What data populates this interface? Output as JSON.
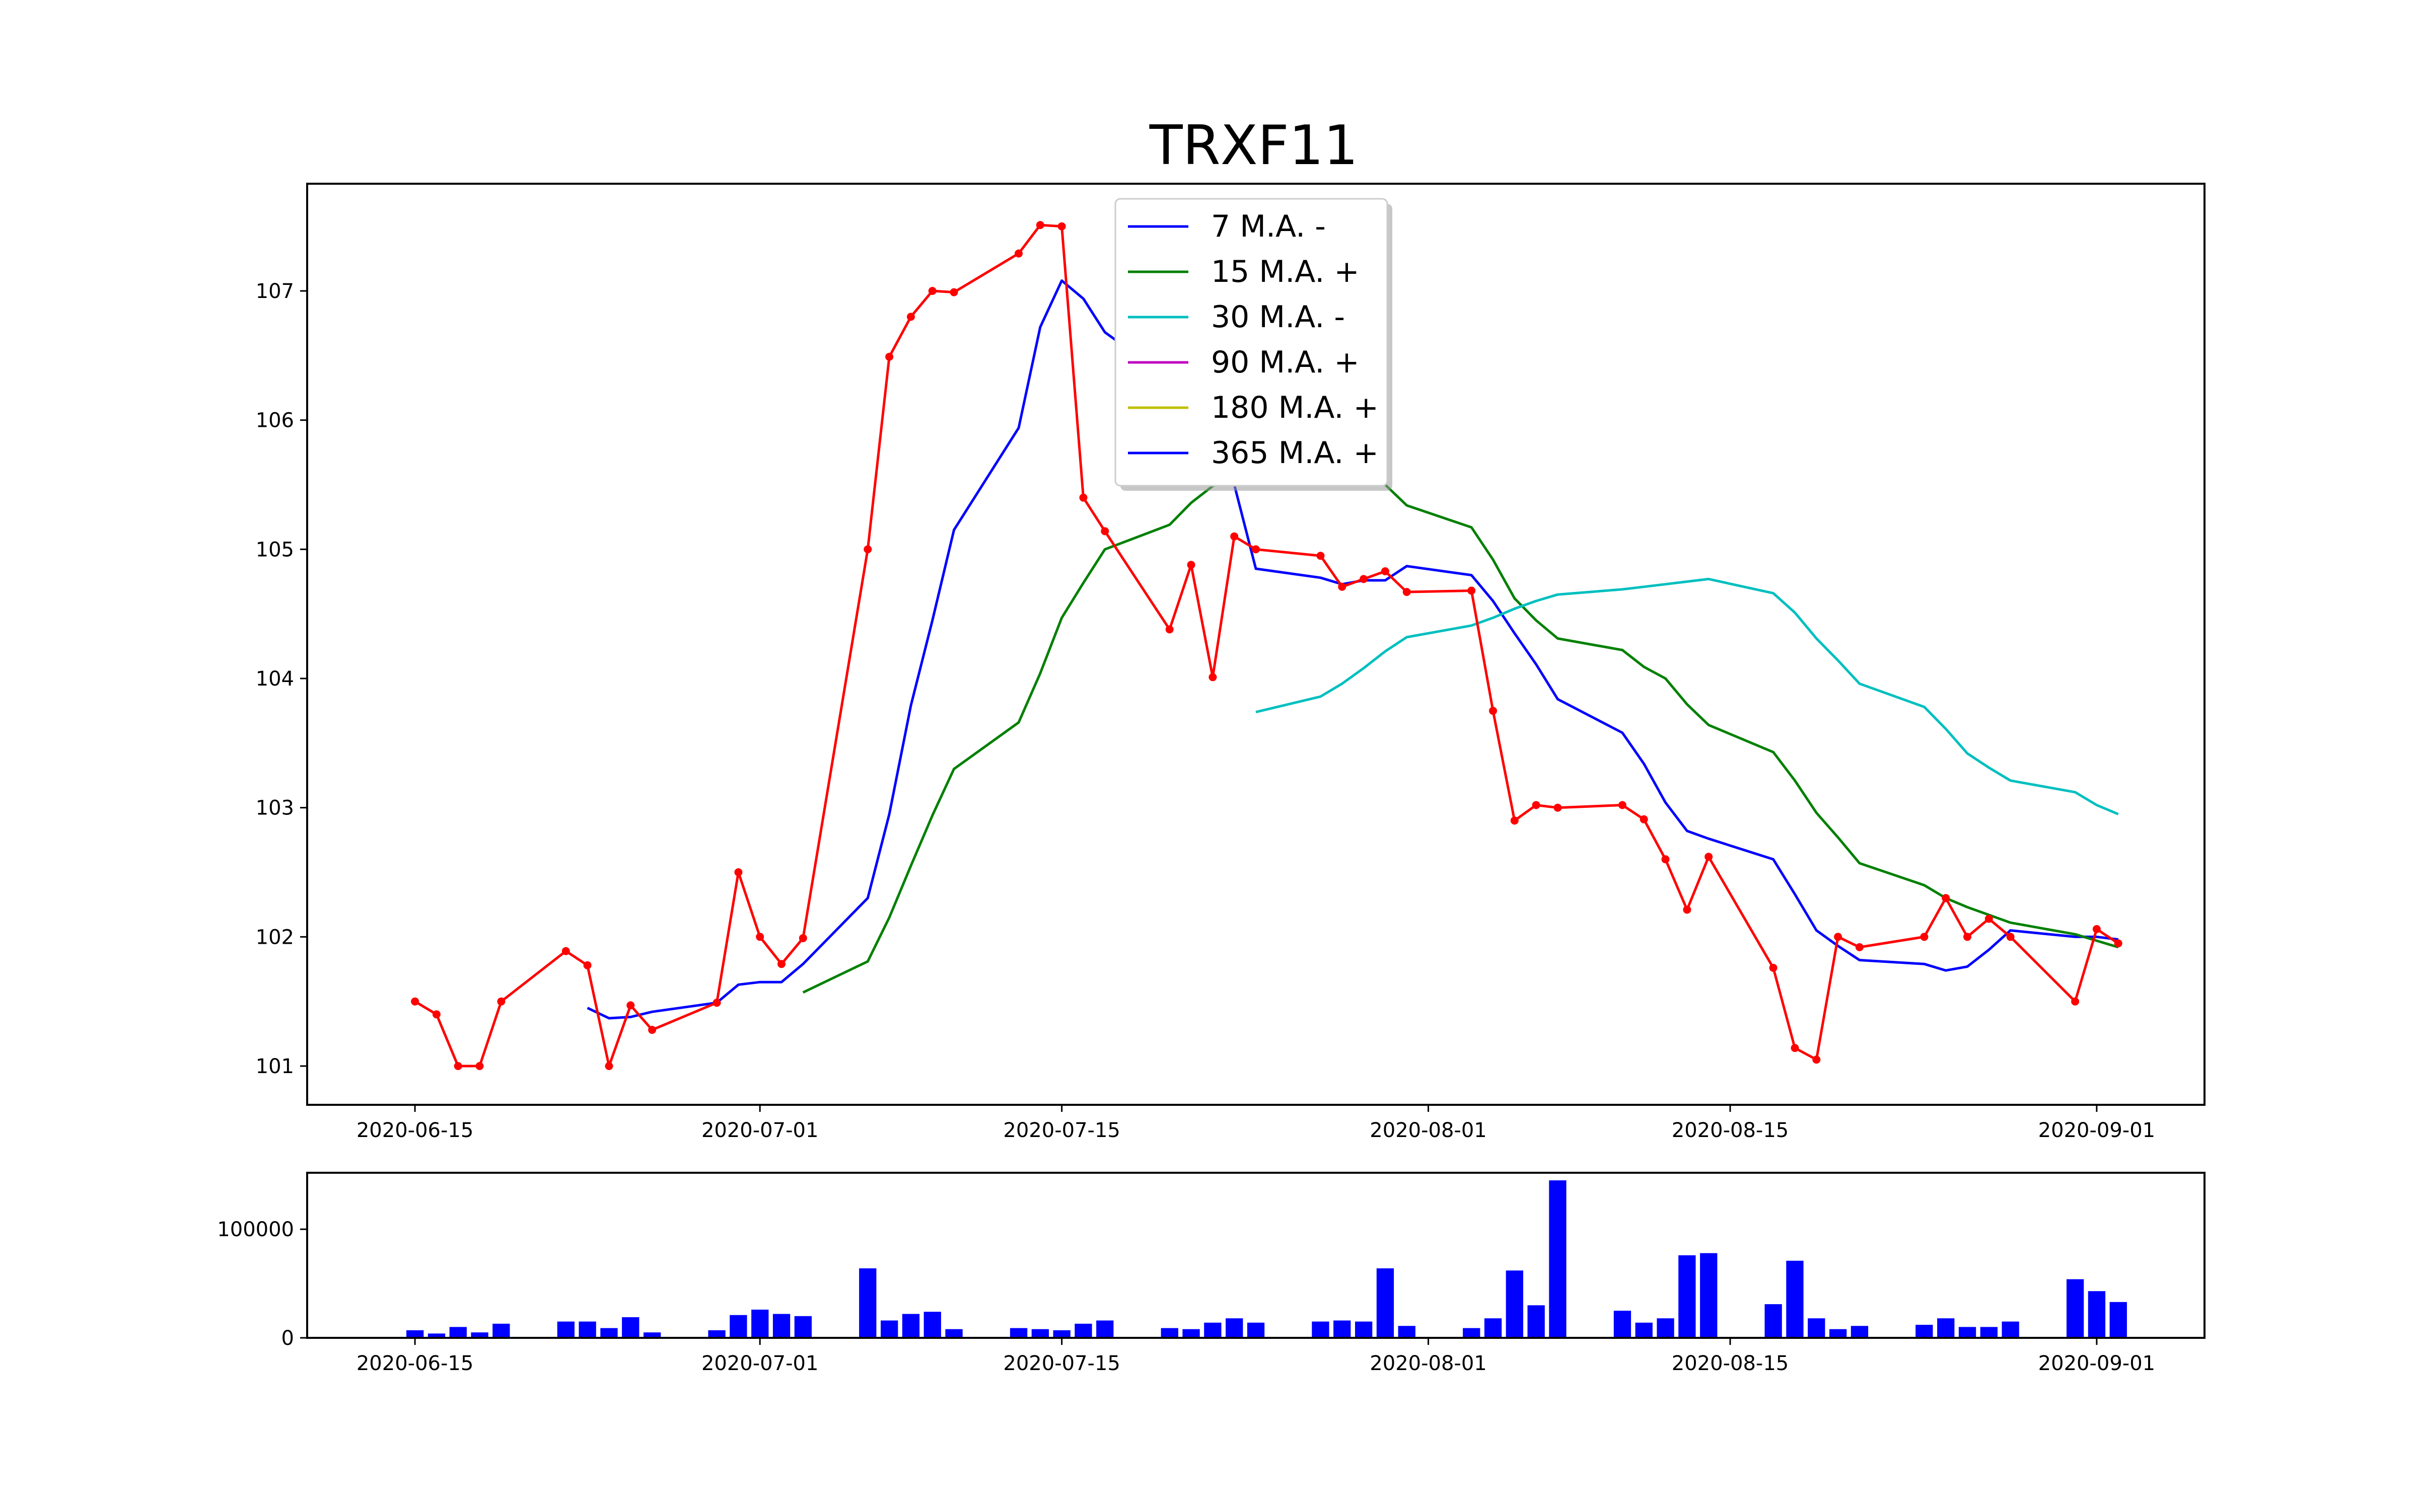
{
  "chart_data": [
    {
      "type": "line",
      "title": "TRXF11",
      "xlabel": "",
      "ylabel": "",
      "ylim": [
        100.7,
        107.83
      ],
      "xlim": [
        "2020-06-10",
        "2020-09-06"
      ],
      "yticks": [
        101,
        102,
        103,
        104,
        105,
        106,
        107
      ],
      "xticks": [
        "2020-06-15",
        "2020-07-01",
        "2020-07-15",
        "2020-08-01",
        "2020-08-15",
        "2020-09-01"
      ],
      "grid": false,
      "legend_position": "top-center",
      "price": {
        "color": "#ff0000",
        "points": [
          [
            "2020-06-15",
            101.5
          ],
          [
            "2020-06-16",
            101.4
          ],
          [
            "2020-06-17",
            101.0
          ],
          [
            "2020-06-18",
            101.0
          ],
          [
            "2020-06-19",
            101.5
          ],
          [
            "2020-06-22",
            101.89
          ],
          [
            "2020-06-23",
            101.78
          ],
          [
            "2020-06-24",
            101.0
          ],
          [
            "2020-06-25",
            101.47
          ],
          [
            "2020-06-26",
            101.28
          ],
          [
            "2020-06-29",
            101.49
          ],
          [
            "2020-06-30",
            102.5
          ],
          [
            "2020-07-01",
            102.0
          ],
          [
            "2020-07-02",
            101.79
          ],
          [
            "2020-07-03",
            101.99
          ],
          [
            "2020-07-06",
            105.0
          ],
          [
            "2020-07-07",
            106.49
          ],
          [
            "2020-07-08",
            106.8
          ],
          [
            "2020-07-09",
            107.0
          ],
          [
            "2020-07-10",
            106.99
          ],
          [
            "2020-07-13",
            107.29
          ],
          [
            "2020-07-14",
            107.51
          ],
          [
            "2020-07-15",
            107.5
          ],
          [
            "2020-07-16",
            105.4
          ],
          [
            "2020-07-17",
            105.14
          ],
          [
            "2020-07-20",
            104.38
          ],
          [
            "2020-07-21",
            104.88
          ],
          [
            "2020-07-22",
            104.01
          ],
          [
            "2020-07-23",
            105.1
          ],
          [
            "2020-07-24",
            105.0
          ],
          [
            "2020-07-27",
            104.95
          ],
          [
            "2020-07-28",
            104.71
          ],
          [
            "2020-07-29",
            104.77
          ],
          [
            "2020-07-30",
            104.83
          ],
          [
            "2020-07-31",
            104.67
          ],
          [
            "2020-08-03",
            104.68
          ],
          [
            "2020-08-04",
            103.75
          ],
          [
            "2020-08-05",
            102.9
          ],
          [
            "2020-08-06",
            103.02
          ],
          [
            "2020-08-07",
            103.0
          ],
          [
            "2020-08-10",
            103.02
          ],
          [
            "2020-08-11",
            102.91
          ],
          [
            "2020-08-12",
            102.6
          ],
          [
            "2020-08-13",
            102.21
          ],
          [
            "2020-08-14",
            102.62
          ],
          [
            "2020-08-17",
            101.76
          ],
          [
            "2020-08-18",
            101.14
          ],
          [
            "2020-08-19",
            101.05
          ],
          [
            "2020-08-20",
            102.0
          ],
          [
            "2020-08-21",
            101.92
          ],
          [
            "2020-08-24",
            102.0
          ],
          [
            "2020-08-25",
            102.3
          ],
          [
            "2020-08-26",
            102.0
          ],
          [
            "2020-08-27",
            102.14
          ],
          [
            "2020-08-28",
            102.0
          ],
          [
            "2020-08-31",
            101.5
          ],
          [
            "2020-09-01",
            102.06
          ],
          [
            "2020-09-02",
            101.95
          ]
        ]
      },
      "series": [
        {
          "name": "7 M.A. -",
          "color": "#0000ff",
          "points": [
            [
              "2020-06-23",
              101.45
            ],
            [
              "2020-06-24",
              101.37
            ],
            [
              "2020-06-25",
              101.38
            ],
            [
              "2020-06-26",
              101.42
            ],
            [
              "2020-06-29",
              101.49
            ],
            [
              "2020-06-30",
              101.63
            ],
            [
              "2020-07-01",
              101.65
            ],
            [
              "2020-07-02",
              101.65
            ],
            [
              "2020-07-03",
              101.79
            ],
            [
              "2020-07-06",
              102.3
            ],
            [
              "2020-07-07",
              102.95
            ],
            [
              "2020-07-08",
              103.79
            ],
            [
              "2020-07-09",
              104.45
            ],
            [
              "2020-07-10",
              105.15
            ],
            [
              "2020-07-13",
              105.94
            ],
            [
              "2020-07-14",
              106.72
            ],
            [
              "2020-07-15",
              107.08
            ],
            [
              "2020-07-16",
              106.94
            ],
            [
              "2020-07-17",
              106.68
            ],
            [
              "2020-07-20",
              106.32
            ],
            [
              "2020-07-22",
              105.6
            ],
            [
              "2020-07-23",
              105.5
            ],
            [
              "2020-07-24",
              104.85
            ],
            [
              "2020-07-27",
              104.78
            ],
            [
              "2020-07-28",
              104.73
            ],
            [
              "2020-07-29",
              104.76
            ],
            [
              "2020-07-30",
              104.76
            ],
            [
              "2020-07-31",
              104.87
            ],
            [
              "2020-08-03",
              104.8
            ],
            [
              "2020-08-04",
              104.6
            ],
            [
              "2020-08-05",
              104.35
            ],
            [
              "2020-08-06",
              104.11
            ],
            [
              "2020-08-07",
              103.84
            ],
            [
              "2020-08-10",
              103.58
            ],
            [
              "2020-08-11",
              103.34
            ],
            [
              "2020-08-12",
              103.04
            ],
            [
              "2020-08-13",
              102.82
            ],
            [
              "2020-08-14",
              102.76
            ],
            [
              "2020-08-17",
              102.6
            ],
            [
              "2020-08-18",
              102.33
            ],
            [
              "2020-08-19",
              102.05
            ],
            [
              "2020-08-20",
              101.93
            ],
            [
              "2020-08-21",
              101.82
            ],
            [
              "2020-08-24",
              101.79
            ],
            [
              "2020-08-25",
              101.74
            ],
            [
              "2020-08-26",
              101.77
            ],
            [
              "2020-08-27",
              101.9
            ],
            [
              "2020-08-28",
              102.05
            ],
            [
              "2020-08-31",
              102.0
            ],
            [
              "2020-09-01",
              102.0
            ],
            [
              "2020-09-02",
              101.98
            ]
          ]
        },
        {
          "name": "15 M.A. +",
          "color": "#008000",
          "points": [
            [
              "2020-07-03",
              101.57
            ],
            [
              "2020-07-06",
              101.81
            ],
            [
              "2020-07-07",
              102.15
            ],
            [
              "2020-07-08",
              102.55
            ],
            [
              "2020-07-09",
              102.94
            ],
            [
              "2020-07-10",
              103.3
            ],
            [
              "2020-07-13",
              103.66
            ],
            [
              "2020-07-14",
              104.04
            ],
            [
              "2020-07-15",
              104.47
            ],
            [
              "2020-07-16",
              104.74
            ],
            [
              "2020-07-17",
              105.0
            ],
            [
              "2020-07-20",
              105.19
            ],
            [
              "2020-07-21",
              105.36
            ],
            [
              "2020-07-22",
              105.49
            ],
            [
              "2020-07-23",
              105.56
            ],
            [
              "2020-07-24",
              105.62
            ],
            [
              "2020-07-27",
              105.66
            ],
            [
              "2020-07-28",
              105.65
            ],
            [
              "2020-07-29",
              105.62
            ],
            [
              "2020-07-30",
              105.5
            ],
            [
              "2020-07-31",
              105.34
            ],
            [
              "2020-08-03",
              105.17
            ],
            [
              "2020-08-04",
              104.92
            ],
            [
              "2020-08-05",
              104.62
            ],
            [
              "2020-08-06",
              104.45
            ],
            [
              "2020-08-07",
              104.31
            ],
            [
              "2020-08-10",
              104.22
            ],
            [
              "2020-08-11",
              104.09
            ],
            [
              "2020-08-12",
              104.0
            ],
            [
              "2020-08-13",
              103.8
            ],
            [
              "2020-08-14",
              103.64
            ],
            [
              "2020-08-17",
              103.43
            ],
            [
              "2020-08-18",
              103.21
            ],
            [
              "2020-08-19",
              102.96
            ],
            [
              "2020-08-20",
              102.77
            ],
            [
              "2020-08-21",
              102.57
            ],
            [
              "2020-08-24",
              102.4
            ],
            [
              "2020-08-25",
              102.3
            ],
            [
              "2020-08-26",
              102.23
            ],
            [
              "2020-08-27",
              102.17
            ],
            [
              "2020-08-28",
              102.11
            ],
            [
              "2020-08-31",
              102.02
            ],
            [
              "2020-09-01",
              101.97
            ],
            [
              "2020-09-02",
              101.92
            ]
          ]
        },
        {
          "name": "30 M.A. -",
          "color": "#00bfbf",
          "points": [
            [
              "2020-07-24",
              103.74
            ],
            [
              "2020-07-27",
              103.86
            ],
            [
              "2020-07-28",
              103.96
            ],
            [
              "2020-07-29",
              104.08
            ],
            [
              "2020-07-30",
              104.21
            ],
            [
              "2020-07-31",
              104.32
            ],
            [
              "2020-08-03",
              104.41
            ],
            [
              "2020-08-04",
              104.47
            ],
            [
              "2020-08-05",
              104.54
            ],
            [
              "2020-08-06",
              104.6
            ],
            [
              "2020-08-07",
              104.65
            ],
            [
              "2020-08-10",
              104.69
            ],
            [
              "2020-08-11",
              104.71
            ],
            [
              "2020-08-12",
              104.73
            ],
            [
              "2020-08-13",
              104.75
            ],
            [
              "2020-08-14",
              104.77
            ],
            [
              "2020-08-17",
              104.66
            ],
            [
              "2020-08-18",
              104.51
            ],
            [
              "2020-08-19",
              104.31
            ],
            [
              "2020-08-20",
              104.14
            ],
            [
              "2020-08-21",
              103.96
            ],
            [
              "2020-08-24",
              103.78
            ],
            [
              "2020-08-25",
              103.61
            ],
            [
              "2020-08-26",
              103.42
            ],
            [
              "2020-08-27",
              103.31
            ],
            [
              "2020-08-28",
              103.21
            ],
            [
              "2020-08-31",
              103.12
            ],
            [
              "2020-09-01",
              103.02
            ],
            [
              "2020-09-02",
              102.95
            ]
          ]
        },
        {
          "name": "90 M.A. +",
          "color": "#bf00bf",
          "points": []
        },
        {
          "name": "180 M.A. +",
          "color": "#bfbf00",
          "points": []
        },
        {
          "name": "365 M.A. +",
          "color": "#0000ff",
          "points": []
        }
      ]
    },
    {
      "type": "bar",
      "title": "",
      "xlabel": "",
      "ylabel": "",
      "ylim": [
        0,
        152000
      ],
      "yticks": [
        0,
        100000
      ],
      "xticks": [
        "2020-06-15",
        "2020-07-01",
        "2020-07-15",
        "2020-08-01",
        "2020-08-15",
        "2020-09-01"
      ],
      "color": "#0000ff",
      "bars": [
        [
          "2020-06-15",
          7000
        ],
        [
          "2020-06-16",
          4000
        ],
        [
          "2020-06-17",
          10000
        ],
        [
          "2020-06-18",
          5000
        ],
        [
          "2020-06-19",
          13000
        ],
        [
          "2020-06-22",
          15000
        ],
        [
          "2020-06-23",
          15000
        ],
        [
          "2020-06-24",
          9000
        ],
        [
          "2020-06-25",
          19000
        ],
        [
          "2020-06-26",
          5000
        ],
        [
          "2020-06-29",
          7000
        ],
        [
          "2020-06-30",
          21000
        ],
        [
          "2020-07-01",
          26000
        ],
        [
          "2020-07-02",
          22000
        ],
        [
          "2020-07-03",
          20000
        ],
        [
          "2020-07-06",
          64000
        ],
        [
          "2020-07-07",
          16000
        ],
        [
          "2020-07-08",
          22000
        ],
        [
          "2020-07-09",
          24000
        ],
        [
          "2020-07-10",
          8000
        ],
        [
          "2020-07-13",
          9000
        ],
        [
          "2020-07-14",
          8000
        ],
        [
          "2020-07-15",
          7000
        ],
        [
          "2020-07-16",
          13000
        ],
        [
          "2020-07-17",
          16000
        ],
        [
          "2020-07-20",
          9000
        ],
        [
          "2020-07-21",
          8000
        ],
        [
          "2020-07-22",
          14000
        ],
        [
          "2020-07-23",
          18000
        ],
        [
          "2020-07-24",
          14000
        ],
        [
          "2020-07-27",
          15000
        ],
        [
          "2020-07-28",
          16000
        ],
        [
          "2020-07-29",
          15000
        ],
        [
          "2020-07-30",
          64000
        ],
        [
          "2020-07-31",
          11000
        ],
        [
          "2020-08-03",
          9000
        ],
        [
          "2020-08-04",
          18000
        ],
        [
          "2020-08-05",
          62000
        ],
        [
          "2020-08-06",
          30000
        ],
        [
          "2020-08-07",
          145000
        ],
        [
          "2020-08-10",
          25000
        ],
        [
          "2020-08-11",
          14000
        ],
        [
          "2020-08-12",
          18000
        ],
        [
          "2020-08-13",
          76000
        ],
        [
          "2020-08-14",
          78000
        ],
        [
          "2020-08-17",
          31000
        ],
        [
          "2020-08-18",
          71000
        ],
        [
          "2020-08-19",
          18000
        ],
        [
          "2020-08-20",
          8000
        ],
        [
          "2020-08-21",
          11000
        ],
        [
          "2020-08-24",
          12000
        ],
        [
          "2020-08-25",
          18000
        ],
        [
          "2020-08-26",
          10000
        ],
        [
          "2020-08-27",
          10000
        ],
        [
          "2020-08-28",
          15000
        ],
        [
          "2020-08-31",
          54000
        ],
        [
          "2020-09-01",
          43000
        ],
        [
          "2020-09-02",
          33000
        ]
      ]
    }
  ]
}
